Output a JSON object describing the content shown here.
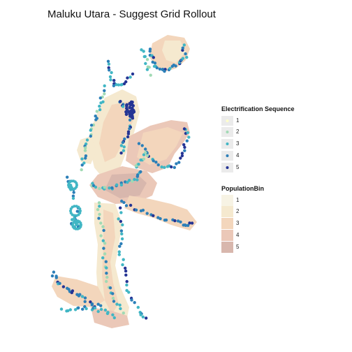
{
  "title": "Maluku Utara - Suggest Grid Rollout",
  "colors": {
    "background": "#ffffff",
    "pop_bins": [
      "#f7f3e4",
      "#f5e9cf",
      "#f3d6bc",
      "#ebc8b8",
      "#d8b7ad"
    ],
    "seq": [
      "#ffffcc",
      "#a1dab4",
      "#41b6c4",
      "#2c7fb8",
      "#253494"
    ]
  },
  "legend": {
    "electrification": {
      "title": "Electrification Sequence",
      "labels": [
        "1",
        "2",
        "3",
        "4",
        "5"
      ]
    },
    "population": {
      "title": "PopulationBin",
      "labels": [
        "1",
        "2",
        "3",
        "4",
        "5"
      ]
    }
  }
}
